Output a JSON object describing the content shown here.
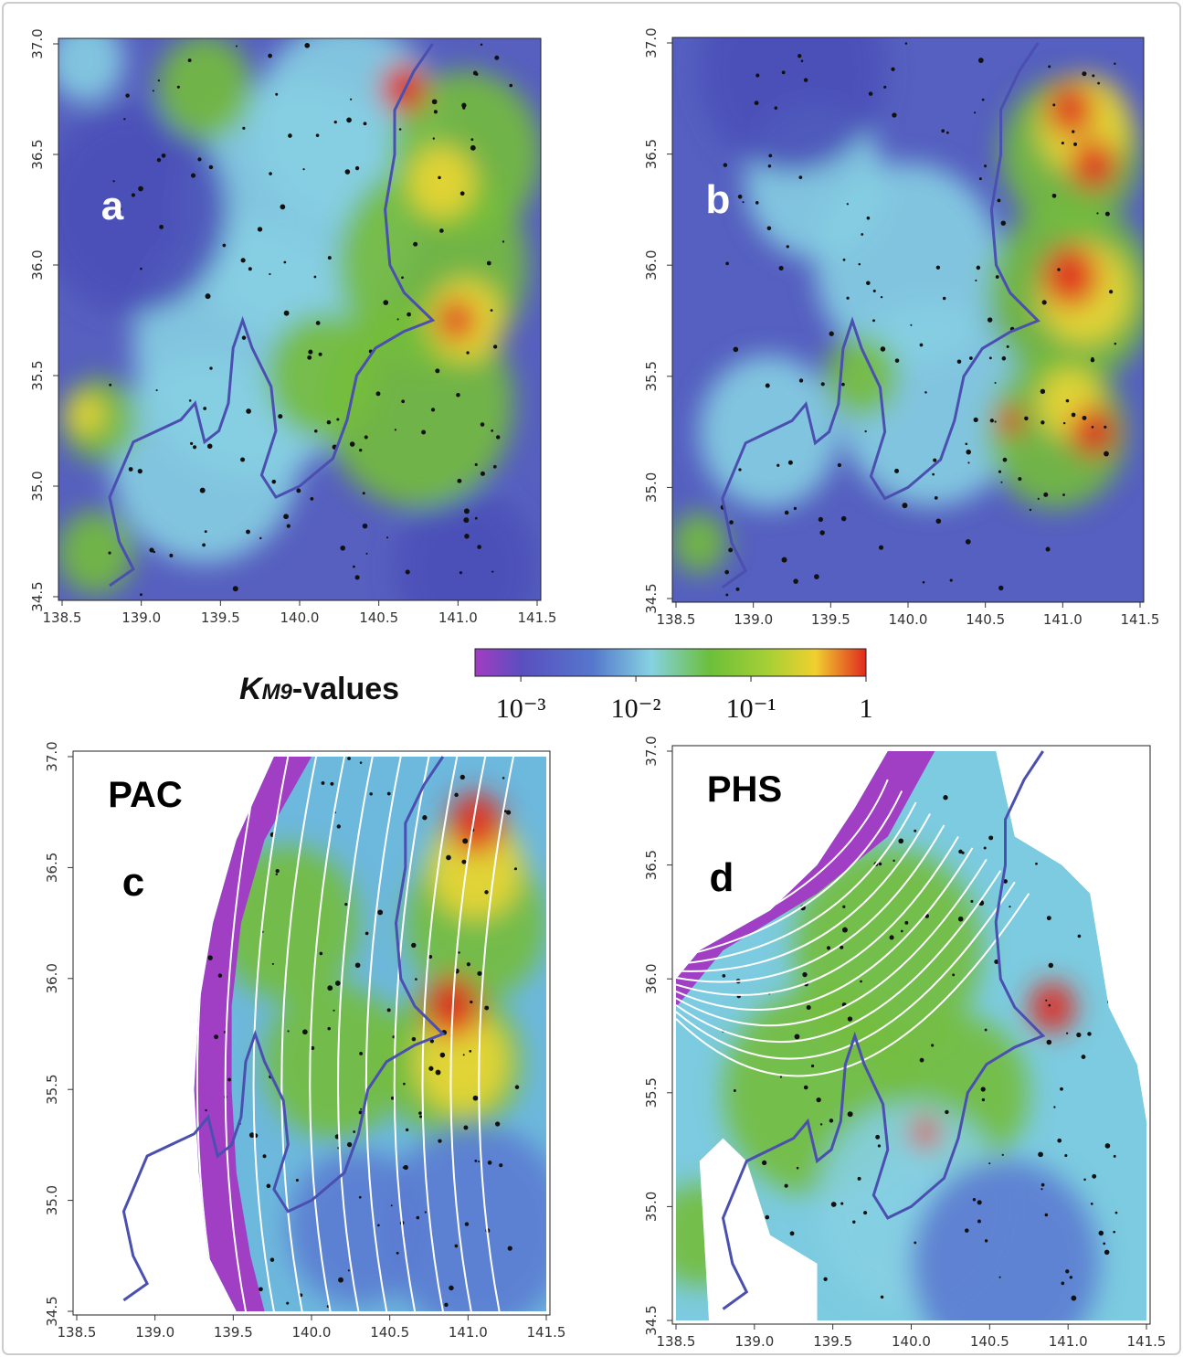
{
  "chart_data": [
    {
      "type": "map",
      "label": "a",
      "xlim": [
        138.5,
        141.5
      ],
      "ylim": [
        34.5,
        37.0
      ],
      "xticks": [
        138.5,
        {
          "value": 139,
          "label": "139.0"
        },
        139.5,
        {
          "value": 140,
          "label": "140.0"
        },
        140.5,
        {
          "value": 141,
          "label": "141.0"
        },
        141.5
      ],
      "yticks": [
        34.5,
        {
          "value": 35,
          "label": "35.0"
        },
        35.5,
        {
          "value": 36,
          "label": "36.0"
        },
        36.5,
        {
          "value": 37,
          "label": "37.0"
        }
      ]
    },
    {
      "type": "map",
      "label": "b",
      "xlim": [
        138.5,
        141.5
      ],
      "ylim": [
        34.5,
        37.0
      ],
      "xticks": [
        138.5,
        {
          "value": 139,
          "label": "139.0"
        },
        139.5,
        {
          "value": 140,
          "label": "140.0"
        },
        140.5,
        {
          "value": 141,
          "label": "141.0"
        },
        141.5
      ],
      "yticks": [
        34.5,
        {
          "value": 35,
          "label": "35.0"
        },
        35.5,
        {
          "value": 36,
          "label": "36.0"
        },
        36.5,
        {
          "value": 37,
          "label": "37.0"
        }
      ]
    },
    {
      "type": "map",
      "plate": "PAC",
      "label": "c",
      "xlim": [
        138.5,
        141.5
      ],
      "ylim": [
        34.5,
        37.0
      ],
      "xticks": [
        138.5,
        {
          "value": 139,
          "label": "139.0"
        },
        139.5,
        {
          "value": 140,
          "label": "140.0"
        },
        140.5,
        {
          "value": 141,
          "label": "141.0"
        },
        141.5
      ],
      "yticks": [
        34.5,
        {
          "value": 35,
          "label": "35.0"
        },
        35.5,
        {
          "value": 36,
          "label": "36.0"
        },
        36.5,
        {
          "value": 37,
          "label": "37.0"
        }
      ]
    },
    {
      "type": "map",
      "plate": "PHS",
      "label": "d",
      "xlim": [
        138.5,
        141.5
      ],
      "ylim": [
        34.5,
        37.0
      ],
      "xticks": [
        138.5,
        {
          "value": 139,
          "label": "139.0"
        },
        139.5,
        {
          "value": 140,
          "label": "140.0"
        },
        140.5,
        {
          "value": 141,
          "label": "141.0"
        },
        141.5
      ],
      "yticks": [
        34.5,
        {
          "value": 35,
          "label": "35.0"
        },
        35.5,
        {
          "value": 36,
          "label": "36.0"
        },
        36.5,
        {
          "value": 37,
          "label": "37.0"
        }
      ]
    },
    {
      "type": "colorbar",
      "title_symbol": "K",
      "title_subscript": "M9",
      "title_suffix": "-values",
      "log_scale": true,
      "clim": [
        0.0004,
        1
      ],
      "ticks": [
        {
          "value": 0.001,
          "label": "10⁻³"
        },
        {
          "value": 0.01,
          "label": "10⁻²"
        },
        {
          "value": 0.1,
          "label": "10⁻¹"
        },
        1
      ]
    }
  ]
}
